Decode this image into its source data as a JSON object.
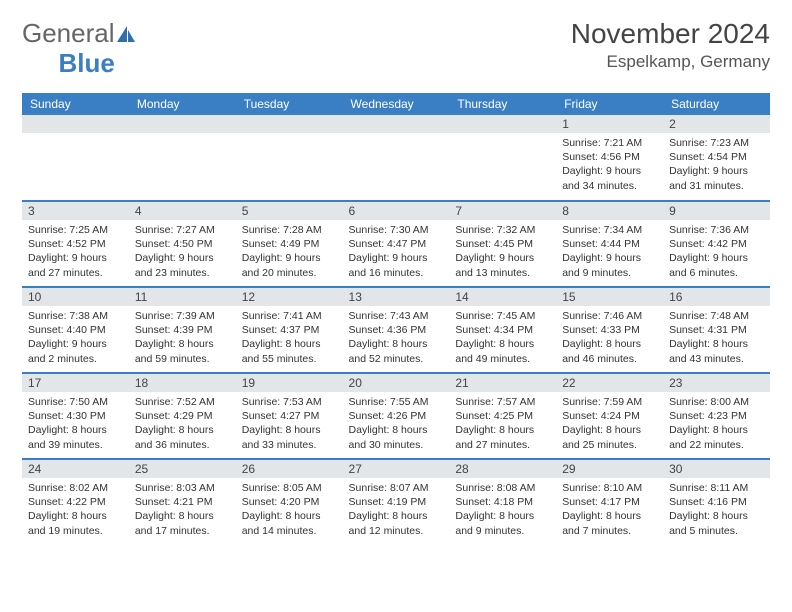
{
  "brand": {
    "part1": "General",
    "part2": "Blue"
  },
  "title": "November 2024",
  "location": "Espelkamp, Germany",
  "colors": {
    "header_bg": "#3a7fc4",
    "header_text": "#ffffff",
    "daynum_bg": "#e3e6e9",
    "border": "#3a7fc4",
    "text": "#333333",
    "brand_gray": "#666666",
    "brand_blue": "#3a7fc4"
  },
  "weekdays": [
    "Sunday",
    "Monday",
    "Tuesday",
    "Wednesday",
    "Thursday",
    "Friday",
    "Saturday"
  ],
  "weeks": [
    [
      {
        "n": "",
        "sr": "",
        "ss": "",
        "dl": ""
      },
      {
        "n": "",
        "sr": "",
        "ss": "",
        "dl": ""
      },
      {
        "n": "",
        "sr": "",
        "ss": "",
        "dl": ""
      },
      {
        "n": "",
        "sr": "",
        "ss": "",
        "dl": ""
      },
      {
        "n": "",
        "sr": "",
        "ss": "",
        "dl": ""
      },
      {
        "n": "1",
        "sr": "Sunrise: 7:21 AM",
        "ss": "Sunset: 4:56 PM",
        "dl": "Daylight: 9 hours and 34 minutes."
      },
      {
        "n": "2",
        "sr": "Sunrise: 7:23 AM",
        "ss": "Sunset: 4:54 PM",
        "dl": "Daylight: 9 hours and 31 minutes."
      }
    ],
    [
      {
        "n": "3",
        "sr": "Sunrise: 7:25 AM",
        "ss": "Sunset: 4:52 PM",
        "dl": "Daylight: 9 hours and 27 minutes."
      },
      {
        "n": "4",
        "sr": "Sunrise: 7:27 AM",
        "ss": "Sunset: 4:50 PM",
        "dl": "Daylight: 9 hours and 23 minutes."
      },
      {
        "n": "5",
        "sr": "Sunrise: 7:28 AM",
        "ss": "Sunset: 4:49 PM",
        "dl": "Daylight: 9 hours and 20 minutes."
      },
      {
        "n": "6",
        "sr": "Sunrise: 7:30 AM",
        "ss": "Sunset: 4:47 PM",
        "dl": "Daylight: 9 hours and 16 minutes."
      },
      {
        "n": "7",
        "sr": "Sunrise: 7:32 AM",
        "ss": "Sunset: 4:45 PM",
        "dl": "Daylight: 9 hours and 13 minutes."
      },
      {
        "n": "8",
        "sr": "Sunrise: 7:34 AM",
        "ss": "Sunset: 4:44 PM",
        "dl": "Daylight: 9 hours and 9 minutes."
      },
      {
        "n": "9",
        "sr": "Sunrise: 7:36 AM",
        "ss": "Sunset: 4:42 PM",
        "dl": "Daylight: 9 hours and 6 minutes."
      }
    ],
    [
      {
        "n": "10",
        "sr": "Sunrise: 7:38 AM",
        "ss": "Sunset: 4:40 PM",
        "dl": "Daylight: 9 hours and 2 minutes."
      },
      {
        "n": "11",
        "sr": "Sunrise: 7:39 AM",
        "ss": "Sunset: 4:39 PM",
        "dl": "Daylight: 8 hours and 59 minutes."
      },
      {
        "n": "12",
        "sr": "Sunrise: 7:41 AM",
        "ss": "Sunset: 4:37 PM",
        "dl": "Daylight: 8 hours and 55 minutes."
      },
      {
        "n": "13",
        "sr": "Sunrise: 7:43 AM",
        "ss": "Sunset: 4:36 PM",
        "dl": "Daylight: 8 hours and 52 minutes."
      },
      {
        "n": "14",
        "sr": "Sunrise: 7:45 AM",
        "ss": "Sunset: 4:34 PM",
        "dl": "Daylight: 8 hours and 49 minutes."
      },
      {
        "n": "15",
        "sr": "Sunrise: 7:46 AM",
        "ss": "Sunset: 4:33 PM",
        "dl": "Daylight: 8 hours and 46 minutes."
      },
      {
        "n": "16",
        "sr": "Sunrise: 7:48 AM",
        "ss": "Sunset: 4:31 PM",
        "dl": "Daylight: 8 hours and 43 minutes."
      }
    ],
    [
      {
        "n": "17",
        "sr": "Sunrise: 7:50 AM",
        "ss": "Sunset: 4:30 PM",
        "dl": "Daylight: 8 hours and 39 minutes."
      },
      {
        "n": "18",
        "sr": "Sunrise: 7:52 AM",
        "ss": "Sunset: 4:29 PM",
        "dl": "Daylight: 8 hours and 36 minutes."
      },
      {
        "n": "19",
        "sr": "Sunrise: 7:53 AM",
        "ss": "Sunset: 4:27 PM",
        "dl": "Daylight: 8 hours and 33 minutes."
      },
      {
        "n": "20",
        "sr": "Sunrise: 7:55 AM",
        "ss": "Sunset: 4:26 PM",
        "dl": "Daylight: 8 hours and 30 minutes."
      },
      {
        "n": "21",
        "sr": "Sunrise: 7:57 AM",
        "ss": "Sunset: 4:25 PM",
        "dl": "Daylight: 8 hours and 27 minutes."
      },
      {
        "n": "22",
        "sr": "Sunrise: 7:59 AM",
        "ss": "Sunset: 4:24 PM",
        "dl": "Daylight: 8 hours and 25 minutes."
      },
      {
        "n": "23",
        "sr": "Sunrise: 8:00 AM",
        "ss": "Sunset: 4:23 PM",
        "dl": "Daylight: 8 hours and 22 minutes."
      }
    ],
    [
      {
        "n": "24",
        "sr": "Sunrise: 8:02 AM",
        "ss": "Sunset: 4:22 PM",
        "dl": "Daylight: 8 hours and 19 minutes."
      },
      {
        "n": "25",
        "sr": "Sunrise: 8:03 AM",
        "ss": "Sunset: 4:21 PM",
        "dl": "Daylight: 8 hours and 17 minutes."
      },
      {
        "n": "26",
        "sr": "Sunrise: 8:05 AM",
        "ss": "Sunset: 4:20 PM",
        "dl": "Daylight: 8 hours and 14 minutes."
      },
      {
        "n": "27",
        "sr": "Sunrise: 8:07 AM",
        "ss": "Sunset: 4:19 PM",
        "dl": "Daylight: 8 hours and 12 minutes."
      },
      {
        "n": "28",
        "sr": "Sunrise: 8:08 AM",
        "ss": "Sunset: 4:18 PM",
        "dl": "Daylight: 8 hours and 9 minutes."
      },
      {
        "n": "29",
        "sr": "Sunrise: 8:10 AM",
        "ss": "Sunset: 4:17 PM",
        "dl": "Daylight: 8 hours and 7 minutes."
      },
      {
        "n": "30",
        "sr": "Sunrise: 8:11 AM",
        "ss": "Sunset: 4:16 PM",
        "dl": "Daylight: 8 hours and 5 minutes."
      }
    ]
  ]
}
